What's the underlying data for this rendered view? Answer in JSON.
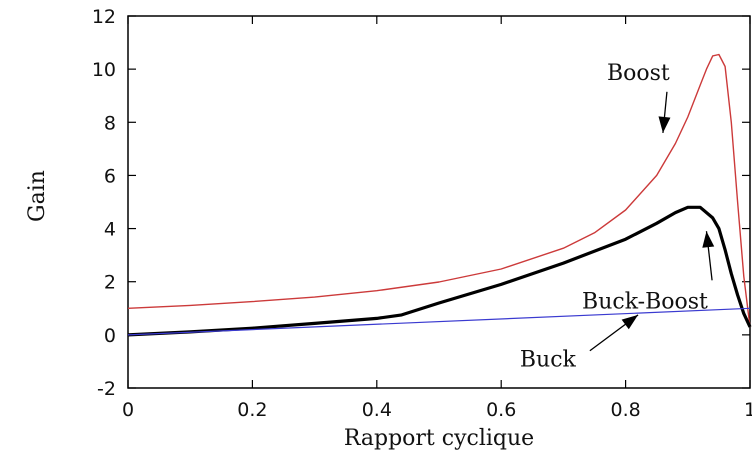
{
  "chart_data": {
    "type": "line",
    "xlabel": "Rapport cyclique",
    "ylabel": "Gain",
    "xlim": [
      0,
      1
    ],
    "ylim": [
      -2,
      12
    ],
    "xticks": [
      0,
      0.2,
      0.4,
      0.6,
      0.8,
      1
    ],
    "xtick_labels": [
      "0",
      "0.2",
      "0.4",
      "0.6",
      "0.8",
      "1"
    ],
    "yticks": [
      -2,
      0,
      2,
      4,
      6,
      8,
      10,
      12
    ],
    "ytick_labels": [
      "-2",
      "0",
      "2",
      "4",
      "6",
      "8",
      "10",
      "12"
    ],
    "grid": false,
    "series": [
      {
        "name": "Boost",
        "color": "#cc3a3a",
        "x": [
          0,
          0.1,
          0.2,
          0.3,
          0.4,
          0.5,
          0.6,
          0.7,
          0.75,
          0.8,
          0.85,
          0.88,
          0.9,
          0.92,
          0.93,
          0.94,
          0.95,
          0.96,
          0.97,
          0.98,
          0.99,
          1.0
        ],
        "y": [
          1.0,
          1.11,
          1.25,
          1.42,
          1.66,
          1.99,
          2.48,
          3.26,
          3.84,
          4.7,
          6.0,
          7.2,
          8.2,
          9.4,
          10.0,
          10.5,
          10.55,
          10.1,
          8.0,
          5.0,
          2.2,
          0.3
        ]
      },
      {
        "name": "Buck-Boost",
        "color": "#000000",
        "x": [
          0,
          0.1,
          0.2,
          0.3,
          0.4,
          0.44,
          0.5,
          0.6,
          0.7,
          0.8,
          0.85,
          0.88,
          0.9,
          0.92,
          0.94,
          0.95,
          0.96,
          0.97,
          0.98,
          0.99,
          1.0
        ],
        "y": [
          0,
          0.11,
          0.25,
          0.43,
          0.62,
          0.75,
          1.2,
          1.9,
          2.7,
          3.6,
          4.2,
          4.6,
          4.8,
          4.8,
          4.4,
          4.0,
          3.2,
          2.3,
          1.5,
          0.8,
          0.3
        ]
      },
      {
        "name": "Buck",
        "color": "#3a3ad0",
        "x": [
          0,
          1.0
        ],
        "y": [
          0,
          1.0
        ]
      }
    ],
    "annotations": [
      {
        "text": "Boost",
        "x": 0.77,
        "y": 9.6,
        "arrow_to": [
          0.86,
          7.6
        ]
      },
      {
        "text": "Buck-Boost",
        "x": 0.73,
        "y": 1.0,
        "arrow_to": [
          0.93,
          3.9
        ]
      },
      {
        "text": "Buck",
        "x": 0.63,
        "y": -1.2,
        "arrow_to": [
          0.82,
          0.75
        ]
      }
    ]
  }
}
